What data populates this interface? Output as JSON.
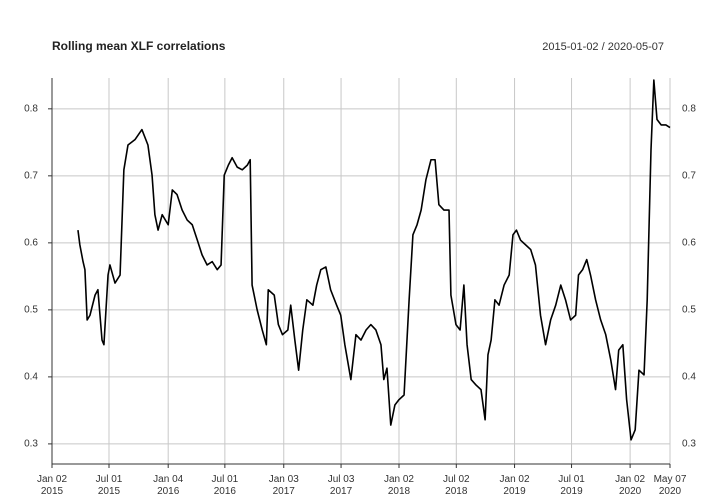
{
  "chart_data": {
    "type": "line",
    "title": "Rolling mean XLF correlations",
    "subtitle": "2015-01-02 / 2020-05-07",
    "x": [
      "2015-03-25",
      "2015-03-31",
      "2015-04-10",
      "2015-04-16",
      "2015-04-23",
      "2015-05-02",
      "2015-05-18",
      "2015-05-27",
      "2015-06-09",
      "2015-06-15",
      "2015-06-28",
      "2015-07-04",
      "2015-07-20",
      "2015-08-05",
      "2015-08-17",
      "2015-08-30",
      "2015-09-21",
      "2015-10-13",
      "2015-11-01",
      "2015-11-14",
      "2015-11-23",
      "2015-12-03",
      "2015-12-16",
      "2016-01-04",
      "2016-01-17",
      "2016-02-01",
      "2016-02-17",
      "2016-03-04",
      "2016-03-20",
      "2016-04-05",
      "2016-04-20",
      "2016-05-06",
      "2016-05-22",
      "2016-06-07",
      "2016-06-19",
      "2016-06-29",
      "2016-07-12",
      "2016-07-24",
      "2016-08-09",
      "2016-08-25",
      "2016-09-10",
      "2016-09-19",
      "2016-09-25",
      "2016-10-11",
      "2016-10-27",
      "2016-11-09",
      "2016-11-15",
      "2016-12-04",
      "2016-12-17",
      "2016-12-30",
      "2017-01-16",
      "2017-01-25",
      "2017-02-07",
      "2017-02-19",
      "2017-03-04",
      "2017-03-17",
      "2017-04-05",
      "2017-04-17",
      "2017-04-30",
      "2017-05-16",
      "2017-05-31",
      "2017-06-19",
      "2017-07-02",
      "2017-07-15",
      "2017-08-03",
      "2017-08-19",
      "2017-09-04",
      "2017-09-20",
      "2017-10-05",
      "2017-10-21",
      "2017-11-06",
      "2017-11-15",
      "2017-11-25",
      "2017-12-07",
      "2017-12-20",
      "2018-01-02",
      "2018-01-18",
      "2018-02-03",
      "2018-02-15",
      "2018-02-28",
      "2018-03-13",
      "2018-03-28",
      "2018-04-13",
      "2018-04-26",
      "2018-05-08",
      "2018-05-24",
      "2018-06-09",
      "2018-06-15",
      "2018-07-01",
      "2018-07-14",
      "2018-07-26",
      "2018-08-05",
      "2018-08-18",
      "2018-09-02",
      "2018-09-18",
      "2018-10-01",
      "2018-10-10",
      "2018-10-20",
      "2018-11-01",
      "2018-11-14",
      "2018-11-30",
      "2018-12-16",
      "2018-12-28",
      "2019-01-08",
      "2019-01-21",
      "2019-02-06",
      "2019-02-22",
      "2019-03-09",
      "2019-03-25",
      "2019-04-10",
      "2019-04-26",
      "2019-05-12",
      "2019-05-28",
      "2019-06-12",
      "2019-06-28",
      "2019-07-14",
      "2019-07-23",
      "2019-08-05",
      "2019-08-18",
      "2019-08-30",
      "2019-09-15",
      "2019-10-01",
      "2019-10-17",
      "2019-11-02",
      "2019-11-17",
      "2019-11-27",
      "2019-12-10",
      "2019-12-22",
      "2020-01-05",
      "2020-01-18",
      "2020-01-30",
      "2020-02-15",
      "2020-02-25",
      "2020-03-08",
      "2020-03-17",
      "2020-03-27",
      "2020-04-09",
      "2020-04-24",
      "2020-05-07"
    ],
    "series": [
      {
        "color": "#000000",
        "values": [
          0.619,
          0.597,
          0.572,
          0.56,
          0.485,
          0.492,
          0.522,
          0.53,
          0.455,
          0.448,
          0.552,
          0.567,
          0.54,
          0.552,
          0.709,
          0.746,
          0.754,
          0.769,
          0.746,
          0.701,
          0.642,
          0.619,
          0.642,
          0.627,
          0.679,
          0.672,
          0.649,
          0.634,
          0.627,
          0.604,
          0.582,
          0.567,
          0.572,
          0.56,
          0.567,
          0.701,
          0.716,
          0.727,
          0.713,
          0.709,
          0.716,
          0.724,
          0.537,
          0.5,
          0.47,
          0.448,
          0.53,
          0.522,
          0.478,
          0.463,
          0.47,
          0.507,
          0.455,
          0.41,
          0.47,
          0.515,
          0.507,
          0.537,
          0.56,
          0.564,
          0.53,
          0.507,
          0.492,
          0.448,
          0.396,
          0.463,
          0.455,
          0.47,
          0.478,
          0.47,
          0.448,
          0.396,
          0.413,
          0.328,
          0.358,
          0.366,
          0.373,
          0.515,
          0.612,
          0.627,
          0.649,
          0.694,
          0.724,
          0.724,
          0.657,
          0.649,
          0.649,
          0.522,
          0.478,
          0.47,
          0.537,
          0.448,
          0.396,
          0.388,
          0.381,
          0.336,
          0.433,
          0.455,
          0.515,
          0.507,
          0.537,
          0.552,
          0.612,
          0.619,
          0.604,
          0.597,
          0.59,
          0.567,
          0.492,
          0.448,
          0.485,
          0.507,
          0.537,
          0.515,
          0.485,
          0.492,
          0.552,
          0.56,
          0.575,
          0.552,
          0.515,
          0.485,
          0.463,
          0.425,
          0.381,
          0.44,
          0.448,
          0.366,
          0.306,
          0.321,
          0.41,
          0.403,
          0.515,
          0.739,
          0.843,
          0.784,
          0.776,
          0.776,
          0.772
        ]
      }
    ],
    "xlim": [
      "2015-01-02",
      "2020-05-07"
    ],
    "xticks": [
      {
        "value": "2015-01-02",
        "label": "Jan 02\n2015"
      },
      {
        "value": "2015-07-01",
        "label": "Jul 01\n2015"
      },
      {
        "value": "2016-01-04",
        "label": "Jan 04\n2016"
      },
      {
        "value": "2016-07-01",
        "label": "Jul 01\n2016"
      },
      {
        "value": "2017-01-03",
        "label": "Jan 03\n2017"
      },
      {
        "value": "2017-07-03",
        "label": "Jul 03\n2017"
      },
      {
        "value": "2018-01-02",
        "label": "Jan 02\n2018"
      },
      {
        "value": "2018-07-02",
        "label": "Jul 02\n2018"
      },
      {
        "value": "2019-01-02",
        "label": "Jan 02\n2019"
      },
      {
        "value": "2019-07-01",
        "label": "Jul 01\n2019"
      },
      {
        "value": "2020-01-02",
        "label": "Jan 02\n2020"
      },
      {
        "value": "2020-05-07",
        "label": "May 07\n2020"
      }
    ],
    "ylim": [
      0.27,
      0.846
    ],
    "yticks": [
      0.3,
      0.4,
      0.5,
      0.6,
      0.7,
      0.8
    ],
    "grid": true
  }
}
